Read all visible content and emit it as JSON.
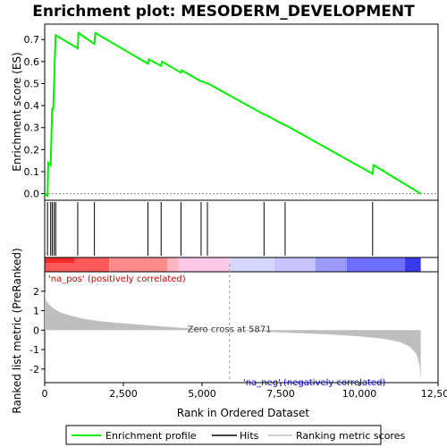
{
  "chart_data": {
    "type": "line",
    "title": "Enrichment plot: MESODERM_DEVELOPMENT",
    "top_panel": {
      "ylabel": "Enrichment score (ES)",
      "ylim": [
        -0.03,
        0.77
      ],
      "yticks": [
        "0.0",
        "0.1",
        "0.2",
        "0.3",
        "0.4",
        "0.5",
        "0.6",
        "0.7"
      ],
      "series": {
        "x": [
          0,
          90,
          110,
          190,
          215,
          240,
          270,
          300,
          320,
          350,
          1050,
          1075,
          1580,
          1610,
          3280,
          3310,
          3700,
          3730,
          4330,
          4360,
          4970,
          5000,
          5170,
          5200,
          6970,
          7000,
          7640,
          7670,
          10420,
          10450,
          11950
        ],
        "y": [
          0.0,
          -0.01,
          0.14,
          0.13,
          0.27,
          0.39,
          0.38,
          0.5,
          0.61,
          0.72,
          0.66,
          0.73,
          0.68,
          0.73,
          0.59,
          0.61,
          0.58,
          0.6,
          0.55,
          0.56,
          0.51,
          0.51,
          0.5,
          0.5,
          0.36,
          0.36,
          0.31,
          0.31,
          0.09,
          0.13,
          0.0
        ]
      }
    },
    "hits_x": [
      90,
      190,
      240,
      300,
      350,
      1050,
      1580,
      3280,
      3700,
      4330,
      4970,
      5170,
      6970,
      7640,
      10420
    ],
    "color_bar": {
      "segments": [
        {
          "from": 0,
          "to": 2050,
          "color": "#ff5a5a"
        },
        {
          "from": 2050,
          "to": 3900,
          "color": "#ff8a8a"
        },
        {
          "from": 3900,
          "to": 4250,
          "color": "#ffb4c0"
        },
        {
          "from": 4250,
          "to": 5871,
          "color": "#ffc8e6"
        },
        {
          "from": 5871,
          "to": 7300,
          "color": "#d6d6ff"
        },
        {
          "from": 7300,
          "to": 8600,
          "color": "#c4c4ff"
        },
        {
          "from": 8600,
          "to": 9600,
          "color": "#9a9aff"
        },
        {
          "from": 9600,
          "to": 11450,
          "color": "#6e6eff"
        },
        {
          "from": 11450,
          "to": 11950,
          "color": "#3b3bee"
        }
      ],
      "top_band": {
        "from": 0,
        "to": 950,
        "color": "#ff2a2a"
      }
    },
    "bottom_panel": {
      "ylabel": "Ranked list metric (PreRanked)",
      "xlabel": "Rank in Ordered Dataset",
      "ylim": [
        -2.7,
        3.0
      ],
      "yticks": [
        "-2",
        "-1",
        "0",
        "1",
        "2"
      ],
      "xlim": [
        0,
        12500
      ],
      "xticks": [
        "0",
        "2,500",
        "5,000",
        "7,500",
        "10,000",
        "12,500"
      ],
      "metric_curve": {
        "x": [
          0,
          50,
          150,
          300,
          500,
          800,
          1200,
          1800,
          2500,
          3500,
          4500,
          5871,
          7000,
          8000,
          9000,
          10000,
          10800,
          11300,
          11600,
          11800,
          11900,
          11950
        ],
        "y": [
          2.0,
          1.5,
          1.3,
          1.1,
          0.9,
          0.75,
          0.6,
          0.45,
          0.35,
          0.22,
          0.1,
          0.0,
          -0.08,
          -0.15,
          -0.22,
          -0.32,
          -0.45,
          -0.62,
          -0.85,
          -1.2,
          -1.7,
          -2.5
        ]
      },
      "zero_cross_label": "Zero cross at 5871",
      "zero_cross_x": 5871,
      "pos_label": "'na_pos' (positively correlated)",
      "neg_label": "'na_neg' (negatively correlated)"
    },
    "legend": {
      "entries": [
        "Enrichment profile",
        "Hits",
        "Ranking metric scores"
      ],
      "placement": "bottom"
    },
    "colors": {
      "profile": "#00ee00",
      "hits": "#000000",
      "metric": "#bebebe",
      "pos_label": "#cc0000",
      "neg_label": "#0000cc"
    }
  }
}
